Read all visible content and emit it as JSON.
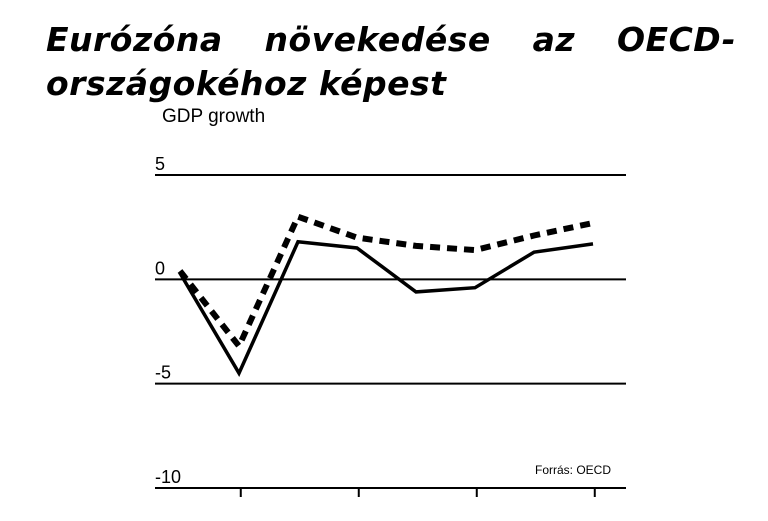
{
  "chart_data": {
    "type": "line",
    "title": "Eurózóna növekedése az OECD-országokéhoz képest",
    "ylabel": "GDP growth",
    "source": "Forrás: OECD",
    "ylim": [
      -10,
      5
    ],
    "yticks": [
      5,
      0,
      -5,
      -10
    ],
    "grid": true,
    "x": [
      1,
      2,
      3,
      4,
      5,
      6,
      7,
      8
    ],
    "series": [
      {
        "style": "solid",
        "values": [
          0.3,
          -4.5,
          1.8,
          1.5,
          -0.6,
          -0.4,
          1.3,
          1.7
        ]
      },
      {
        "style": "dashed",
        "values": [
          0.4,
          -3.2,
          3.0,
          2.0,
          1.6,
          1.4,
          2.1,
          2.7
        ]
      }
    ],
    "colors": {
      "lines": "#000000",
      "grid": "#000000"
    }
  }
}
